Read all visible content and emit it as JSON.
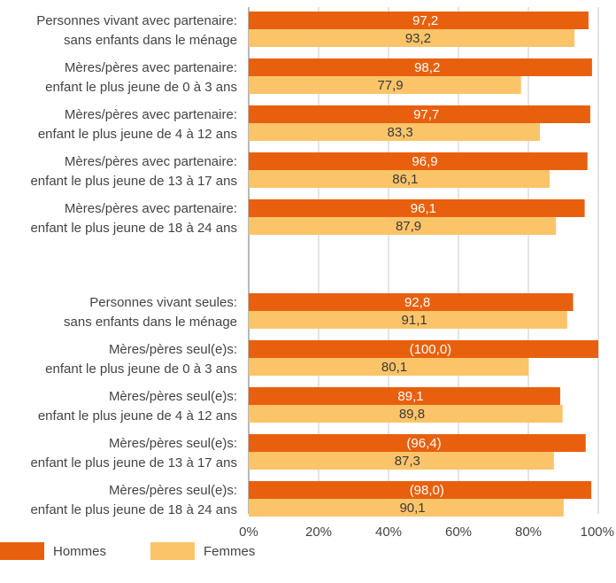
{
  "chart_data": {
    "type": "bar",
    "orientation": "horizontal",
    "xlim": [
      0,
      100
    ],
    "x_ticks": [
      "0%",
      "20%",
      "40%",
      "60%",
      "80%",
      "100%"
    ],
    "grid": true,
    "legend_position": "bottom-left",
    "colors": {
      "Hommes": "#E8600E",
      "Femmes": "#FBC469"
    },
    "groups": [
      {
        "categories": [
          [
            "Personnes vivant avec partenaire:",
            "sans enfants dans le ménage"
          ],
          [
            "Mères/pères avec partenaire:",
            "enfant le plus jeune de 0 à 3 ans"
          ],
          [
            "Mères/pères avec partenaire:",
            "enfant le plus jeune de 4 à 12 ans"
          ],
          [
            "Mères/pères avec partenaire:",
            "enfant le plus jeune de 13 à 17 ans"
          ],
          [
            "Mères/pères avec partenaire:",
            "enfant le plus jeune de 18 à 24 ans"
          ]
        ],
        "series": [
          {
            "name": "Hommes",
            "values": [
              97.2,
              98.2,
              97.7,
              96.9,
              96.1
            ],
            "labels": [
              "97,2",
              "98,2",
              "97,7",
              "96,9",
              "96,1"
            ]
          },
          {
            "name": "Femmes",
            "values": [
              93.2,
              77.9,
              83.3,
              86.1,
              87.9
            ],
            "labels": [
              "93,2",
              "77,9",
              "83,3",
              "86,1",
              "87,9"
            ]
          }
        ]
      },
      {
        "categories": [
          [
            "Personnes vivant seules:",
            "sans enfants dans le ménage"
          ],
          [
            "Mères/pères seul(e)s:",
            "enfant le plus jeune de 0 à 3 ans"
          ],
          [
            "Mères/pères seul(e)s:",
            "enfant le plus jeune de 4 à 12 ans"
          ],
          [
            "Mères/pères seul(e)s:",
            "enfant le plus jeune de 13 à 17 ans"
          ],
          [
            "Mères/pères seul(e)s:",
            "enfant le plus jeune de 18 à 24 ans"
          ]
        ],
        "series": [
          {
            "name": "Hommes",
            "values": [
              92.8,
              100.0,
              89.1,
              96.4,
              98.0
            ],
            "labels": [
              "92,8",
              "(100,0)",
              "89,1",
              "(96,4)",
              "(98,0)"
            ]
          },
          {
            "name": "Femmes",
            "values": [
              91.1,
              80.1,
              89.8,
              87.3,
              90.1
            ],
            "labels": [
              "91,1",
              "80,1",
              "89,8",
              "87,3",
              "90,1"
            ]
          }
        ]
      }
    ]
  },
  "legend": {
    "items": [
      {
        "label": "Hommes",
        "color": "#E8600E"
      },
      {
        "label": "Femmes",
        "color": "#FBC469"
      }
    ]
  }
}
